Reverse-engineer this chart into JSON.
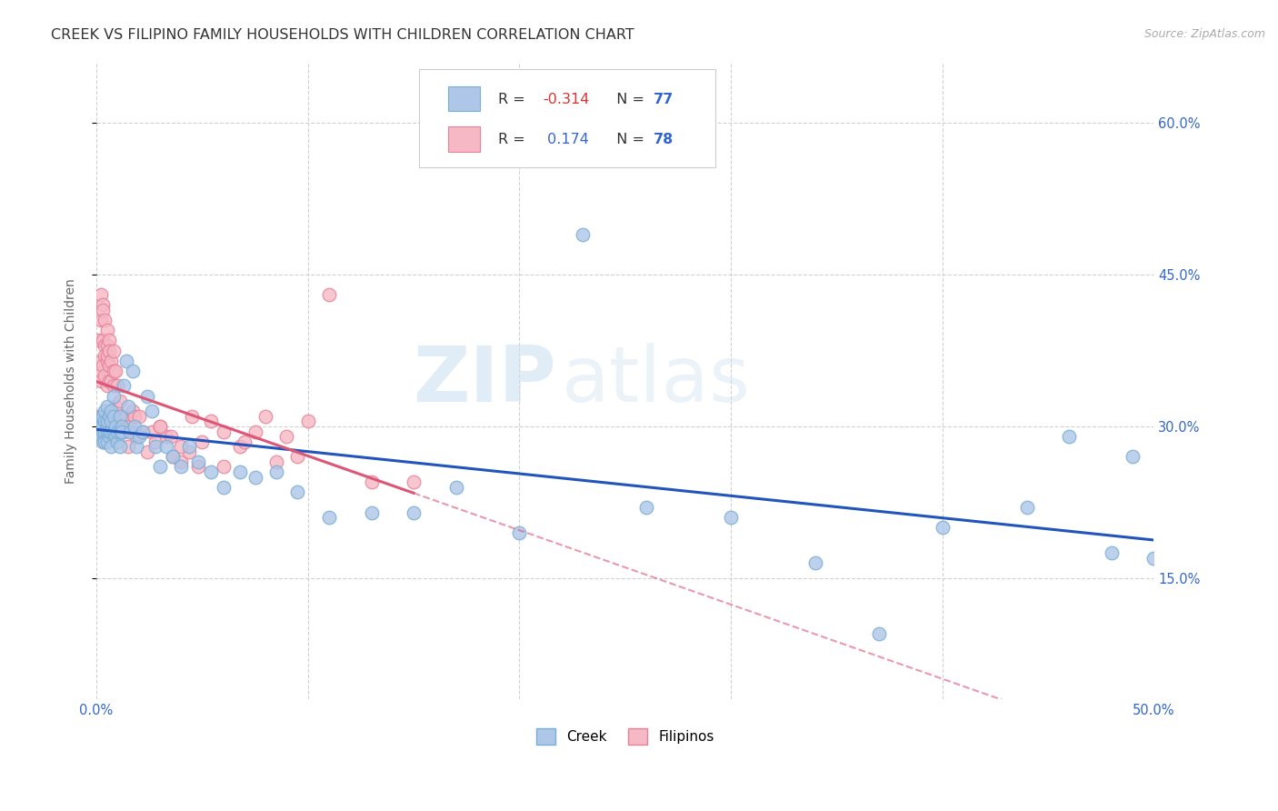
{
  "title": "CREEK VS FILIPINO FAMILY HOUSEHOLDS WITH CHILDREN CORRELATION CHART",
  "source": "Source: ZipAtlas.com",
  "ylabel": "Family Households with Children",
  "xlim": [
    0.0,
    0.5
  ],
  "ylim": [
    0.03,
    0.66
  ],
  "creek_color": "#aec6e8",
  "creek_edge_color": "#7aafd4",
  "filipino_color": "#f5b8c4",
  "filipino_edge_color": "#e8829a",
  "creek_line_color": "#2255bb",
  "filipino_line_color": "#dd5577",
  "background_color": "#ffffff",
  "grid_color": "#cccccc",
  "title_fontsize": 11.5,
  "label_fontsize": 10,
  "tick_fontsize": 10.5,
  "creek_data_x": [
    0.001,
    0.001,
    0.002,
    0.002,
    0.002,
    0.003,
    0.003,
    0.003,
    0.003,
    0.004,
    0.004,
    0.004,
    0.004,
    0.005,
    0.005,
    0.005,
    0.005,
    0.005,
    0.006,
    0.006,
    0.006,
    0.007,
    0.007,
    0.007,
    0.007,
    0.008,
    0.008,
    0.008,
    0.009,
    0.009,
    0.01,
    0.01,
    0.011,
    0.011,
    0.011,
    0.012,
    0.012,
    0.013,
    0.014,
    0.015,
    0.016,
    0.017,
    0.018,
    0.019,
    0.02,
    0.022,
    0.024,
    0.026,
    0.028,
    0.03,
    0.033,
    0.036,
    0.04,
    0.044,
    0.048,
    0.054,
    0.06,
    0.068,
    0.075,
    0.085,
    0.095,
    0.11,
    0.13,
    0.15,
    0.17,
    0.2,
    0.23,
    0.26,
    0.3,
    0.34,
    0.37,
    0.4,
    0.44,
    0.46,
    0.48,
    0.49,
    0.5
  ],
  "creek_data_y": [
    0.295,
    0.305,
    0.3,
    0.31,
    0.29,
    0.285,
    0.295,
    0.31,
    0.3,
    0.305,
    0.295,
    0.315,
    0.285,
    0.3,
    0.295,
    0.305,
    0.32,
    0.285,
    0.29,
    0.31,
    0.295,
    0.295,
    0.305,
    0.315,
    0.28,
    0.31,
    0.295,
    0.33,
    0.3,
    0.29,
    0.285,
    0.295,
    0.295,
    0.31,
    0.28,
    0.3,
    0.295,
    0.34,
    0.365,
    0.32,
    0.295,
    0.355,
    0.3,
    0.28,
    0.29,
    0.295,
    0.33,
    0.315,
    0.28,
    0.26,
    0.28,
    0.27,
    0.26,
    0.28,
    0.265,
    0.255,
    0.24,
    0.255,
    0.25,
    0.255,
    0.235,
    0.21,
    0.215,
    0.215,
    0.24,
    0.195,
    0.49,
    0.22,
    0.21,
    0.165,
    0.095,
    0.2,
    0.22,
    0.29,
    0.175,
    0.27,
    0.17
  ],
  "filipino_data_x": [
    0.001,
    0.001,
    0.001,
    0.002,
    0.002,
    0.002,
    0.002,
    0.003,
    0.003,
    0.003,
    0.003,
    0.004,
    0.004,
    0.004,
    0.004,
    0.004,
    0.005,
    0.005,
    0.005,
    0.005,
    0.005,
    0.006,
    0.006,
    0.006,
    0.006,
    0.007,
    0.007,
    0.007,
    0.007,
    0.008,
    0.008,
    0.008,
    0.008,
    0.009,
    0.009,
    0.009,
    0.01,
    0.01,
    0.011,
    0.011,
    0.012,
    0.013,
    0.014,
    0.015,
    0.016,
    0.017,
    0.018,
    0.019,
    0.02,
    0.022,
    0.024,
    0.026,
    0.028,
    0.03,
    0.033,
    0.036,
    0.04,
    0.044,
    0.048,
    0.054,
    0.06,
    0.068,
    0.075,
    0.085,
    0.095,
    0.11,
    0.13,
    0.15,
    0.03,
    0.035,
    0.04,
    0.045,
    0.05,
    0.06,
    0.07,
    0.08,
    0.09,
    0.1
  ],
  "filipino_data_y": [
    0.385,
    0.35,
    0.31,
    0.405,
    0.43,
    0.365,
    0.345,
    0.42,
    0.385,
    0.415,
    0.36,
    0.405,
    0.38,
    0.35,
    0.37,
    0.295,
    0.38,
    0.365,
    0.395,
    0.34,
    0.37,
    0.36,
    0.385,
    0.345,
    0.375,
    0.31,
    0.345,
    0.365,
    0.29,
    0.34,
    0.355,
    0.375,
    0.305,
    0.355,
    0.32,
    0.295,
    0.34,
    0.31,
    0.325,
    0.305,
    0.31,
    0.295,
    0.31,
    0.28,
    0.3,
    0.315,
    0.31,
    0.29,
    0.31,
    0.295,
    0.275,
    0.295,
    0.285,
    0.3,
    0.29,
    0.27,
    0.265,
    0.275,
    0.26,
    0.305,
    0.26,
    0.28,
    0.295,
    0.265,
    0.27,
    0.43,
    0.245,
    0.245,
    0.3,
    0.29,
    0.28,
    0.31,
    0.285,
    0.295,
    0.285,
    0.31,
    0.29,
    0.305
  ]
}
